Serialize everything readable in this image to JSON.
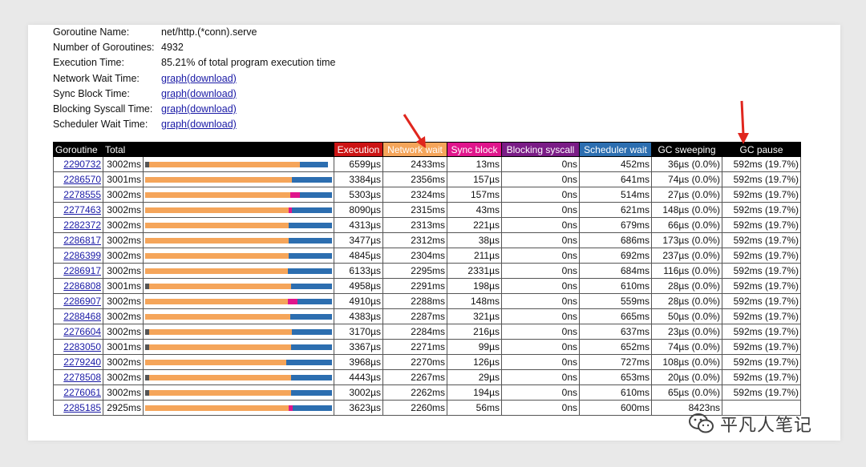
{
  "summary": {
    "rows": [
      {
        "label": "Goroutine Name:",
        "value": "net/http.(*conn).serve",
        "link": false
      },
      {
        "label": "Number of Goroutines:",
        "value": "4932",
        "link": false
      },
      {
        "label": "Execution Time:",
        "value": "85.21% of total program execution time",
        "link": false
      },
      {
        "label": "Network Wait Time:",
        "value": "graph(download)",
        "link": true
      },
      {
        "label": "Sync Block Time:",
        "value": "graph(download)",
        "link": true
      },
      {
        "label": "Blocking Syscall Time:",
        "value": "graph(download)",
        "link": true
      },
      {
        "label": "Scheduler Wait Time:",
        "value": "graph(download)",
        "link": true
      }
    ]
  },
  "table": {
    "headers": {
      "goroutine": "Goroutine",
      "total": "Total",
      "execution": "Execution",
      "network": "Network wait",
      "sync": "Sync block",
      "syscall": "Blocking syscall",
      "sched": "Scheduler wait",
      "gcsweep": "GC sweeping",
      "gcpause": "GC pause"
    },
    "colors": {
      "black": "#000000",
      "execution": "#cc1414",
      "network": "#f5a55a",
      "sync": "#e0158c",
      "syscall": "#7a1c86",
      "sched": "#2c6eb0",
      "exec_bar": "#555555"
    },
    "rows": [
      {
        "id": "2290732",
        "total": "3002ms",
        "exec": "6599µs",
        "net": "2433ms",
        "sync": "13ms",
        "sys": "0ns",
        "sched": "452ms",
        "sweep": "36µs (0.0%)",
        "pause": "592ms (19.7%)",
        "bar": {
          "exec": 0.02,
          "net": 0.81,
          "sync": 0.0,
          "sched": 0.15
        }
      },
      {
        "id": "2286570",
        "total": "3001ms",
        "exec": "3384µs",
        "net": "2356ms",
        "sync": "157µs",
        "sys": "0ns",
        "sched": "641ms",
        "sweep": "74µs (0.0%)",
        "pause": "592ms (19.7%)",
        "bar": {
          "exec": 0.0,
          "net": 0.785,
          "sync": 0.0,
          "sched": 0.215
        }
      },
      {
        "id": "2278555",
        "total": "3002ms",
        "exec": "5303µs",
        "net": "2324ms",
        "sync": "157ms",
        "sys": "0ns",
        "sched": "514ms",
        "sweep": "27µs (0.0%)",
        "pause": "592ms (19.7%)",
        "bar": {
          "exec": 0.0,
          "net": 0.775,
          "sync": 0.052,
          "sched": 0.173
        }
      },
      {
        "id": "2277463",
        "total": "3002ms",
        "exec": "8090µs",
        "net": "2315ms",
        "sync": "43ms",
        "sys": "0ns",
        "sched": "621ms",
        "sweep": "148µs (0.0%)",
        "pause": "592ms (19.7%)",
        "bar": {
          "exec": 0.0,
          "net": 0.77,
          "sync": 0.015,
          "sched": 0.215
        }
      },
      {
        "id": "2282372",
        "total": "3002ms",
        "exec": "4313µs",
        "net": "2313ms",
        "sync": "221µs",
        "sys": "0ns",
        "sched": "679ms",
        "sweep": "66µs (0.0%)",
        "pause": "592ms (19.7%)",
        "bar": {
          "exec": 0.0,
          "net": 0.77,
          "sync": 0.0,
          "sched": 0.23
        }
      },
      {
        "id": "2286817",
        "total": "3002ms",
        "exec": "3477µs",
        "net": "2312ms",
        "sync": "38µs",
        "sys": "0ns",
        "sched": "686ms",
        "sweep": "173µs (0.0%)",
        "pause": "592ms (19.7%)",
        "bar": {
          "exec": 0.0,
          "net": 0.77,
          "sync": 0.0,
          "sched": 0.23
        }
      },
      {
        "id": "2286399",
        "total": "3002ms",
        "exec": "4845µs",
        "net": "2304ms",
        "sync": "211µs",
        "sys": "0ns",
        "sched": "692ms",
        "sweep": "237µs (0.0%)",
        "pause": "592ms (19.7%)",
        "bar": {
          "exec": 0.0,
          "net": 0.768,
          "sync": 0.0,
          "sched": 0.232
        }
      },
      {
        "id": "2286917",
        "total": "3002ms",
        "exec": "6133µs",
        "net": "2295ms",
        "sync": "2331µs",
        "sys": "0ns",
        "sched": "684ms",
        "sweep": "116µs (0.0%)",
        "pause": "592ms (19.7%)",
        "bar": {
          "exec": 0.0,
          "net": 0.765,
          "sync": 0.0,
          "sched": 0.235
        }
      },
      {
        "id": "2286808",
        "total": "3001ms",
        "exec": "4958µs",
        "net": "2291ms",
        "sync": "198µs",
        "sys": "0ns",
        "sched": "610ms",
        "sweep": "28µs (0.0%)",
        "pause": "592ms (19.7%)",
        "bar": {
          "exec": 0.02,
          "net": 0.76,
          "sync": 0.0,
          "sched": 0.22
        }
      },
      {
        "id": "2286907",
        "total": "3002ms",
        "exec": "4910µs",
        "net": "2288ms",
        "sync": "148ms",
        "sys": "0ns",
        "sched": "559ms",
        "sweep": "28µs (0.0%)",
        "pause": "592ms (19.7%)",
        "bar": {
          "exec": 0.0,
          "net": 0.765,
          "sync": 0.05,
          "sched": 0.185
        }
      },
      {
        "id": "2288468",
        "total": "3002ms",
        "exec": "4383µs",
        "net": "2287ms",
        "sync": "321µs",
        "sys": "0ns",
        "sched": "665ms",
        "sweep": "50µs (0.0%)",
        "pause": "592ms (19.7%)",
        "bar": {
          "exec": 0.0,
          "net": 0.775,
          "sync": 0.0,
          "sched": 0.225
        }
      },
      {
        "id": "2276604",
        "total": "3002ms",
        "exec": "3170µs",
        "net": "2284ms",
        "sync": "216µs",
        "sys": "0ns",
        "sched": "637ms",
        "sweep": "23µs (0.0%)",
        "pause": "592ms (19.7%)",
        "bar": {
          "exec": 0.02,
          "net": 0.765,
          "sync": 0.0,
          "sched": 0.215
        }
      },
      {
        "id": "2283050",
        "total": "3001ms",
        "exec": "3367µs",
        "net": "2271ms",
        "sync": "99µs",
        "sys": "0ns",
        "sched": "652ms",
        "sweep": "74µs (0.0%)",
        "pause": "592ms (19.7%)",
        "bar": {
          "exec": 0.02,
          "net": 0.76,
          "sync": 0.0,
          "sched": 0.22
        }
      },
      {
        "id": "2279240",
        "total": "3002ms",
        "exec": "3968µs",
        "net": "2270ms",
        "sync": "126µs",
        "sys": "0ns",
        "sched": "727ms",
        "sweep": "108µs (0.0%)",
        "pause": "592ms (19.7%)",
        "bar": {
          "exec": 0.0,
          "net": 0.755,
          "sync": 0.0,
          "sched": 0.245
        }
      },
      {
        "id": "2278508",
        "total": "3002ms",
        "exec": "4443µs",
        "net": "2267ms",
        "sync": "29µs",
        "sys": "0ns",
        "sched": "653ms",
        "sweep": "20µs (0.0%)",
        "pause": "592ms (19.7%)",
        "bar": {
          "exec": 0.02,
          "net": 0.76,
          "sync": 0.0,
          "sched": 0.22
        }
      },
      {
        "id": "2276061",
        "total": "3002ms",
        "exec": "3002µs",
        "net": "2262ms",
        "sync": "194µs",
        "sys": "0ns",
        "sched": "610ms",
        "sweep": "65µs (0.0%)",
        "pause": "592ms (19.7%)",
        "bar": {
          "exec": 0.02,
          "net": 0.76,
          "sync": 0.0,
          "sched": 0.22
        }
      },
      {
        "id": "2285185",
        "total": "2925ms",
        "exec": "3623µs",
        "net": "2260ms",
        "sync": "56ms",
        "sys": "0ns",
        "sched": "600ms",
        "sweep": "8423ns",
        "pause": "",
        "bar": {
          "exec": 0.0,
          "net": 0.77,
          "sync": 0.02,
          "sched": 0.21
        }
      }
    ]
  },
  "watermark": {
    "text": "平凡人笔记",
    "icon": "wechat-icon"
  }
}
